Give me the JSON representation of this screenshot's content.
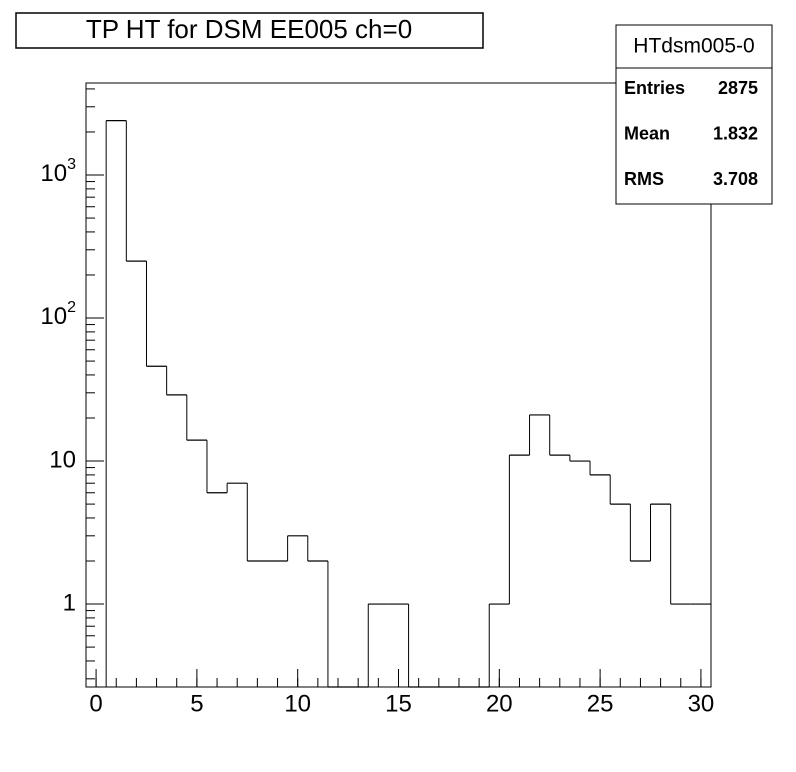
{
  "chart_data": {
    "type": "histogram",
    "title": "TP HT for DSM EE005 ch=0",
    "bins": [
      0.5,
      1.5,
      2.5,
      3.5,
      4.5,
      5.5,
      6.5,
      7.5,
      8.5,
      9.5,
      10.5,
      11.5,
      12.5,
      13.5,
      14.5,
      15.5,
      16.5,
      17.5,
      18.5,
      19.5,
      20.5,
      21.5,
      22.5,
      23.5,
      24.5,
      25.5,
      26.5,
      27.5,
      28.5,
      29.5,
      30.5
    ],
    "values": [
      2400,
      250,
      46,
      29,
      14,
      6,
      7,
      2,
      2,
      3,
      2,
      0,
      0,
      1,
      1,
      0,
      0,
      0,
      0,
      1,
      11,
      21,
      11,
      10,
      8,
      5,
      2,
      5,
      1,
      1
    ],
    "color": "#000000",
    "xlim": [
      -0.5,
      30.5
    ],
    "xticks": [
      0,
      5,
      10,
      15,
      20,
      25,
      30
    ],
    "ylim": [
      0.263,
      4400
    ],
    "yticks": [
      1,
      10,
      {
        "value": 100,
        "label": "10^2"
      },
      {
        "value": 1000,
        "label": "10^3"
      }
    ],
    "log_y": true,
    "stats": {
      "name": "HTdsm005-0",
      "rows": [
        [
          "Entries",
          "2875"
        ],
        [
          "Mean",
          "1.832"
        ],
        [
          "RMS",
          "3.708"
        ]
      ]
    }
  }
}
